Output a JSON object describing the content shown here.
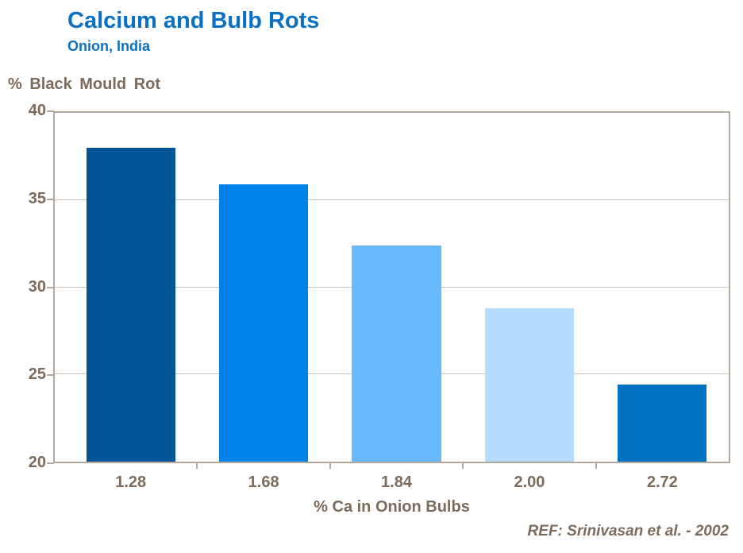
{
  "header": {
    "title": "Calcium and Bulb Rots",
    "subtitle": "Onion, India"
  },
  "chart_data": {
    "type": "bar",
    "title": "Calcium and Bulb Rots",
    "subtitle": "Onion, India",
    "categories": [
      "1.28",
      "1.68",
      "1.84",
      "2.00",
      "2.72"
    ],
    "values": [
      38.0,
      35.9,
      32.4,
      28.8,
      24.4
    ],
    "bar_colors": [
      "#005697",
      "#0082e8",
      "#68bafc",
      "#b5dcfd",
      "#0070c0"
    ],
    "xlabel": "% Ca in Onion Bulbs",
    "ylabel": "% Black Mould Rot",
    "ylim": [
      20,
      40
    ],
    "yticks": [
      40,
      35,
      30,
      25,
      20
    ],
    "grid": true,
    "legend": false
  },
  "footer": {
    "reference": "REF: Srinivasan et al. - 2002"
  },
  "colors": {
    "title_blue": "#0a70c4",
    "axis_text": "#7c6b5a",
    "frame": "#b2a89b",
    "gridline": "#c9c1b7",
    "background": "#ffffff"
  }
}
